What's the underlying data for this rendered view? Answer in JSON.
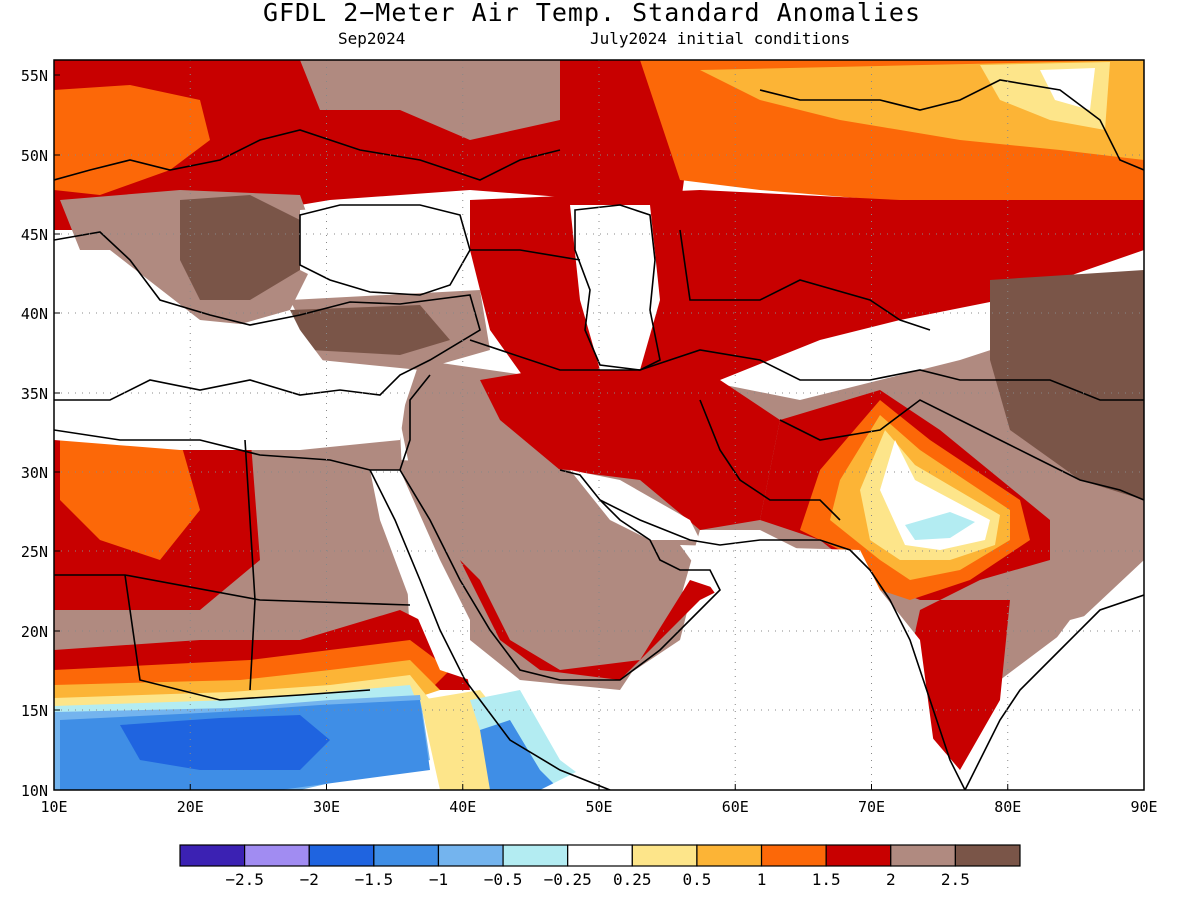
{
  "header": {
    "title": "GFDL 2−Meter Air Temp. Standard Anomalies",
    "forecast_month": "Sep2024",
    "initial_conditions": "July2024 initial conditions"
  },
  "map": {
    "lon_range": [
      10,
      90
    ],
    "lat_range": [
      10,
      56
    ],
    "lat_ticks": [
      "55N",
      "50N",
      "45N",
      "40N",
      "35N",
      "30N",
      "25N",
      "20N",
      "15N",
      "10N"
    ],
    "lon_ticks": [
      "10E",
      "20E",
      "30E",
      "40E",
      "50E",
      "60E",
      "70E",
      "80E",
      "90E"
    ]
  },
  "colorbar": {
    "colors": [
      "#3b21b3",
      "#a18cf2",
      "#1f64e0",
      "#3f8ee6",
      "#74b4ee",
      "#b3ecf2",
      "#ffffff",
      "#fde58a",
      "#fcb436",
      "#fc6808",
      "#c80000",
      "#b08a80",
      "#7a5548"
    ],
    "labels": [
      "−2.5",
      "−2",
      "−1.5",
      "−1",
      "−0.5",
      "−0.25",
      "0.25",
      "0.5",
      "1",
      "1.5",
      "2",
      "2.5"
    ]
  }
}
